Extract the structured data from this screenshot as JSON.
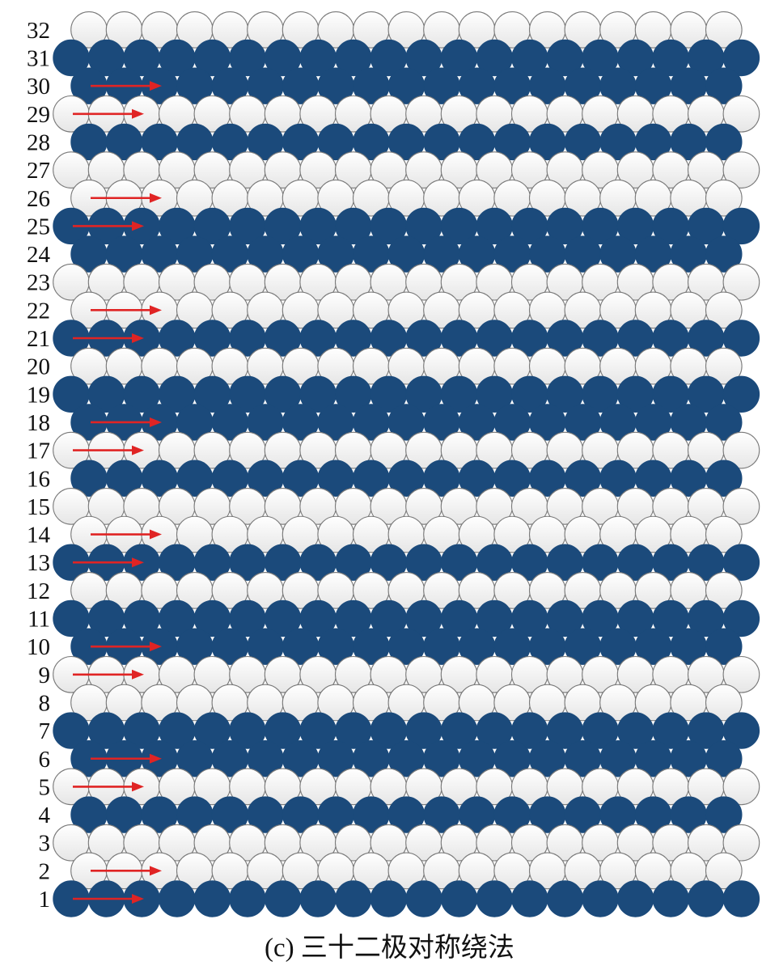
{
  "caption": "(c) 三十二极对称绕法",
  "colors": {
    "filled": "#1b4a7b",
    "empty": "#f4f4f4",
    "outline": "#7a7a7a",
    "arrow": "#e02424"
  },
  "rows": [
    {
      "label": "1",
      "filled": true,
      "arrow": true
    },
    {
      "label": "2",
      "filled": false,
      "arrow": true
    },
    {
      "label": "3",
      "filled": false,
      "arrow": false
    },
    {
      "label": "4",
      "filled": true,
      "arrow": false
    },
    {
      "label": "5",
      "filled": false,
      "arrow": true
    },
    {
      "label": "6",
      "filled": true,
      "arrow": true
    },
    {
      "label": "7",
      "filled": true,
      "arrow": false
    },
    {
      "label": "8",
      "filled": false,
      "arrow": false
    },
    {
      "label": "9",
      "filled": false,
      "arrow": true
    },
    {
      "label": "10",
      "filled": true,
      "arrow": true
    },
    {
      "label": "11",
      "filled": true,
      "arrow": false
    },
    {
      "label": "12",
      "filled": false,
      "arrow": false
    },
    {
      "label": "13",
      "filled": true,
      "arrow": true
    },
    {
      "label": "14",
      "filled": false,
      "arrow": true
    },
    {
      "label": "15",
      "filled": false,
      "arrow": false
    },
    {
      "label": "16",
      "filled": true,
      "arrow": false
    },
    {
      "label": "17",
      "filled": false,
      "arrow": true
    },
    {
      "label": "18",
      "filled": true,
      "arrow": true
    },
    {
      "label": "19",
      "filled": true,
      "arrow": false
    },
    {
      "label": "20",
      "filled": false,
      "arrow": false
    },
    {
      "label": "21",
      "filled": true,
      "arrow": true
    },
    {
      "label": "22",
      "filled": false,
      "arrow": true
    },
    {
      "label": "23",
      "filled": false,
      "arrow": false
    },
    {
      "label": "24",
      "filled": true,
      "arrow": false
    },
    {
      "label": "25",
      "filled": true,
      "arrow": true
    },
    {
      "label": "26",
      "filled": false,
      "arrow": true
    },
    {
      "label": "27",
      "filled": false,
      "arrow": false
    },
    {
      "label": "28",
      "filled": true,
      "arrow": false
    },
    {
      "label": "29",
      "filled": false,
      "arrow": true
    },
    {
      "label": "30",
      "filled": true,
      "arrow": true
    },
    {
      "label": "31",
      "filled": true,
      "arrow": false
    },
    {
      "label": "32",
      "filled": false,
      "arrow": false
    }
  ]
}
